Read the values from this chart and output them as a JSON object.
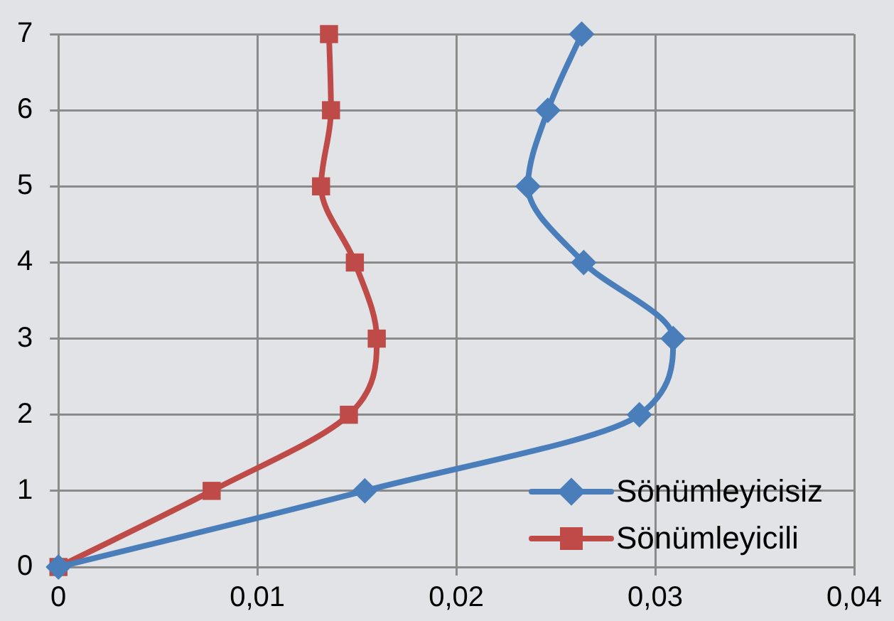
{
  "chart_data": {
    "type": "line",
    "xlim": [
      0,
      0.04
    ],
    "xticks": [
      0,
      {
        "value": 0.01,
        "label": "0,01"
      },
      {
        "value": 0.02,
        "label": "0,02"
      },
      {
        "value": 0.03,
        "label": "0,03"
      },
      {
        "value": 0.04,
        "label": "0,04"
      }
    ],
    "ylim": [
      0,
      7
    ],
    "yticks": [
      0,
      1,
      2,
      3,
      4,
      5,
      6,
      7
    ],
    "grid": true,
    "legend": "bottom right",
    "line_style": "solid",
    "series": [
      {
        "name": "Sönümleyicisiz",
        "color": "#4a7ebb",
        "marker": "diamond",
        "x": [
          0,
          0.0154,
          0.0292,
          0.0309,
          0.0264,
          0.0236,
          0.0246,
          0.0263
        ],
        "values": [
          0,
          1,
          2,
          3,
          4,
          5,
          6,
          7
        ]
      },
      {
        "name": "Sönümleyicili",
        "color": "#be4b48",
        "marker": "square",
        "x": [
          0,
          0.0077,
          0.0146,
          0.016,
          0.0149,
          0.0132,
          0.0137,
          0.0136
        ],
        "values": [
          0,
          1,
          2,
          3,
          4,
          5,
          6,
          7
        ]
      }
    ]
  }
}
